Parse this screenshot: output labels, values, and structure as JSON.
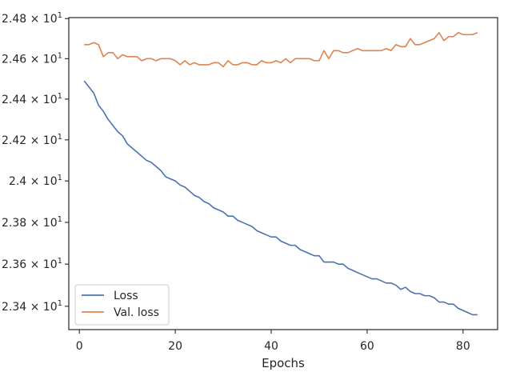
{
  "chart_data": {
    "type": "line",
    "title": "",
    "xlabel": "Epochs",
    "ylabel": "",
    "xlim": [
      -2.2,
      87.2
    ],
    "ylim": [
      23.29,
      24.805
    ],
    "yscale": "log",
    "grid": false,
    "legend_position": "lower-left",
    "x_ticks": [
      0,
      20,
      40,
      60,
      80
    ],
    "y_ticks": [
      {
        "value": 23.4,
        "mant": "2.34",
        "exp": "1"
      },
      {
        "value": 23.6,
        "mant": "2.36",
        "exp": "1"
      },
      {
        "value": 23.8,
        "mant": "2.38",
        "exp": "1"
      },
      {
        "value": 24.0,
        "mant": "2.4",
        "exp": "1"
      },
      {
        "value": 24.2,
        "mant": "2.42",
        "exp": "1"
      },
      {
        "value": 24.4,
        "mant": "2.44",
        "exp": "1"
      },
      {
        "value": 24.6,
        "mant": "2.46",
        "exp": "1"
      },
      {
        "value": 24.8,
        "mant": "2.48",
        "exp": "1"
      }
    ],
    "series": [
      {
        "name": "Loss",
        "color": "#4c72b0",
        "x": [
          1,
          2,
          3,
          4,
          5,
          6,
          7,
          8,
          9,
          10,
          11,
          12,
          13,
          14,
          15,
          16,
          17,
          18,
          19,
          20,
          21,
          22,
          23,
          24,
          25,
          26,
          27,
          28,
          29,
          30,
          31,
          32,
          33,
          34,
          35,
          36,
          37,
          38,
          39,
          40,
          41,
          42,
          43,
          44,
          45,
          46,
          47,
          48,
          49,
          50,
          51,
          52,
          53,
          54,
          55,
          56,
          57,
          58,
          59,
          60,
          61,
          62,
          63,
          64,
          65,
          66,
          67,
          68,
          69,
          70,
          71,
          72,
          73,
          74,
          75,
          76,
          77,
          78,
          79,
          80,
          81,
          82,
          83
        ],
        "y": [
          24.49,
          24.46,
          24.43,
          24.37,
          24.34,
          24.3,
          24.27,
          24.24,
          24.22,
          24.18,
          24.16,
          24.14,
          24.12,
          24.1,
          24.09,
          24.07,
          24.05,
          24.02,
          24.01,
          24.0,
          23.98,
          23.97,
          23.95,
          23.93,
          23.92,
          23.9,
          23.89,
          23.87,
          23.86,
          23.85,
          23.83,
          23.83,
          23.81,
          23.8,
          23.79,
          23.78,
          23.76,
          23.75,
          23.74,
          23.73,
          23.73,
          23.71,
          23.7,
          23.69,
          23.69,
          23.67,
          23.66,
          23.65,
          23.64,
          23.64,
          23.61,
          23.61,
          23.61,
          23.6,
          23.6,
          23.58,
          23.57,
          23.56,
          23.55,
          23.54,
          23.53,
          23.53,
          23.52,
          23.51,
          23.51,
          23.5,
          23.48,
          23.49,
          23.47,
          23.46,
          23.46,
          23.45,
          23.45,
          23.44,
          23.42,
          23.42,
          23.41,
          23.41,
          23.39,
          23.38,
          23.37,
          23.36,
          23.36
        ]
      },
      {
        "name": "Val. loss",
        "color": "#dd8452",
        "x": [
          1,
          2,
          3,
          4,
          5,
          6,
          7,
          8,
          9,
          10,
          11,
          12,
          13,
          14,
          15,
          16,
          17,
          18,
          19,
          20,
          21,
          22,
          23,
          24,
          25,
          26,
          27,
          28,
          29,
          30,
          31,
          32,
          33,
          34,
          35,
          36,
          37,
          38,
          39,
          40,
          41,
          42,
          43,
          44,
          45,
          46,
          47,
          48,
          49,
          50,
          51,
          52,
          53,
          54,
          55,
          56,
          57,
          58,
          59,
          60,
          61,
          62,
          63,
          64,
          65,
          66,
          67,
          68,
          69,
          70,
          71,
          72,
          73,
          74,
          75,
          76,
          77,
          78,
          79,
          80,
          81,
          82,
          83
        ],
        "y": [
          24.67,
          24.67,
          24.68,
          24.67,
          24.61,
          24.63,
          24.63,
          24.6,
          24.62,
          24.61,
          24.61,
          24.61,
          24.59,
          24.6,
          24.6,
          24.59,
          24.6,
          24.6,
          24.6,
          24.59,
          24.57,
          24.59,
          24.57,
          24.58,
          24.57,
          24.57,
          24.57,
          24.58,
          24.58,
          24.56,
          24.59,
          24.57,
          24.57,
          24.58,
          24.58,
          24.57,
          24.57,
          24.59,
          24.58,
          24.58,
          24.59,
          24.58,
          24.6,
          24.58,
          24.6,
          24.6,
          24.6,
          24.6,
          24.59,
          24.59,
          24.64,
          24.6,
          24.64,
          24.64,
          24.63,
          24.63,
          24.64,
          24.65,
          24.64,
          24.64,
          24.64,
          24.64,
          24.64,
          24.65,
          24.64,
          24.67,
          24.66,
          24.66,
          24.7,
          24.67,
          24.67,
          24.68,
          24.69,
          24.7,
          24.73,
          24.69,
          24.71,
          24.71,
          24.73,
          24.72,
          24.72,
          24.72,
          24.73
        ]
      }
    ]
  }
}
